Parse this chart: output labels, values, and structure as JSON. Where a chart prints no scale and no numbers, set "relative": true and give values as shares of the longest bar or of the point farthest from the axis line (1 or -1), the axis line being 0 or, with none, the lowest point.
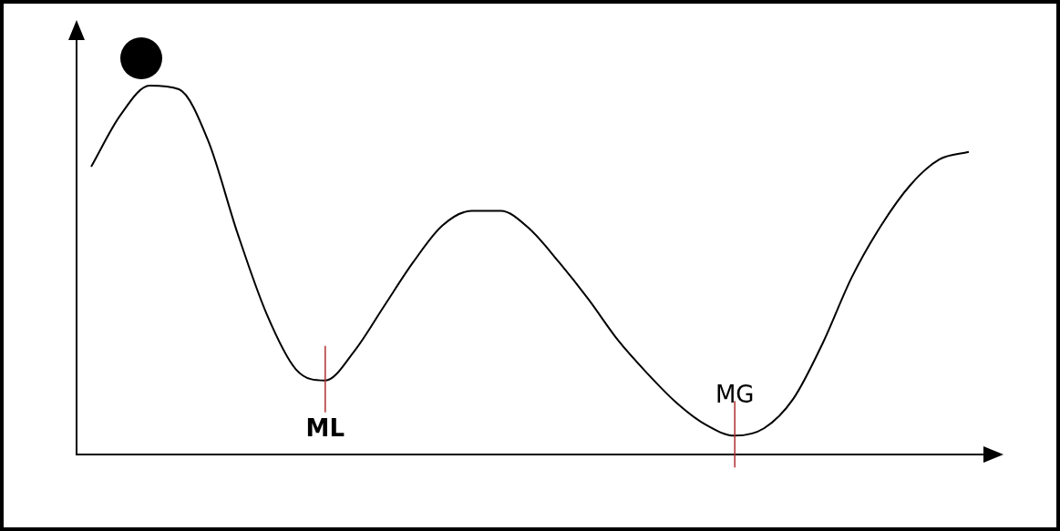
{
  "chart_data": {
    "type": "line",
    "relative": true,
    "categories": [
      null,
      null,
      null,
      null,
      null,
      null,
      null,
      null,
      null,
      null,
      null,
      null,
      null,
      null,
      null,
      null,
      null,
      null,
      null,
      null,
      null,
      null,
      null,
      null,
      null,
      null,
      null,
      null,
      null,
      null,
      null
    ],
    "series": [
      {
        "color": "#000000",
        "values": [
          0.78,
          0.92,
          1,
          0.99,
          0.85,
          0.6,
          0.38,
          0.23,
          0.2,
          0.28,
          0.4,
          0.52,
          0.62,
          0.66,
          0.66,
          0.61,
          0.52,
          0.42,
          0.31,
          0.22,
          0.14,
          0.08,
          0.05,
          0.07,
          0.15,
          0.3,
          0.48,
          0.62,
          0.73,
          0.8,
          0.82
        ]
      }
    ],
    "annotations": [
      {
        "text": "ML",
        "y": 0.2
      },
      {
        "text": "MG",
        "y": 0.05
      }
    ],
    "marker": "none",
    "grid": false,
    "legend": false
  }
}
